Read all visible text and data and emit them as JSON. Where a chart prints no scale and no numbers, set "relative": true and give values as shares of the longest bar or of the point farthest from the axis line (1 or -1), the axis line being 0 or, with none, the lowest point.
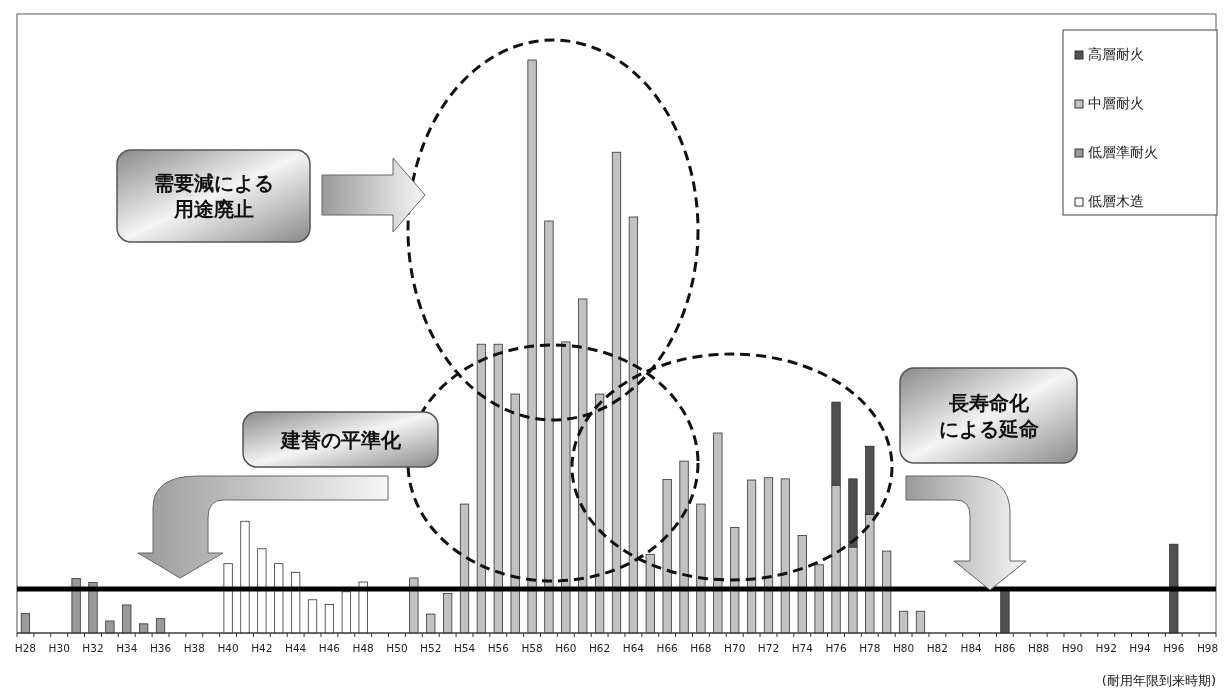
{
  "chart_data": {
    "type": "bar",
    "stacked": true,
    "relative": true,
    "legend": "top right",
    "xlabel": "(耐用年限到来時期)",
    "categories": [
      "H28",
      null,
      "H30",
      null,
      "H32",
      null,
      "H34",
      null,
      "H36",
      null,
      "H38",
      null,
      "H40",
      null,
      "H42",
      null,
      "H44",
      null,
      "H46",
      null,
      "H48",
      null,
      "H50",
      null,
      "H52",
      null,
      "H54",
      null,
      "H56",
      null,
      "H58",
      null,
      "H60",
      null,
      "H62",
      null,
      "H64",
      null,
      "H66",
      null,
      "H68",
      null,
      "H70",
      null,
      "H72",
      null,
      "H74",
      null,
      "H76",
      null,
      "H78",
      null,
      "H80",
      null,
      "H82",
      null,
      "H84",
      null,
      "H86",
      null,
      "H88",
      null,
      "H90",
      null,
      "H92",
      null,
      "H94",
      null,
      "H96",
      null,
      "H98"
    ],
    "series": [
      {
        "name": "低層木造",
        "color": "#ffffff",
        "values": [
          null,
          null,
          null,
          null,
          null,
          null,
          null,
          null,
          null,
          null,
          null,
          null,
          0.121,
          0.195,
          0.147,
          0.121,
          0.106,
          0.058,
          0.05,
          0.072,
          0.089,
          null,
          null,
          null,
          null,
          null,
          null,
          null,
          null,
          null,
          null,
          null,
          null,
          null,
          null,
          null,
          null,
          null,
          null,
          null,
          null,
          null,
          null,
          null,
          null,
          null,
          null,
          null,
          null,
          null,
          null,
          null,
          null,
          null,
          null,
          null,
          null,
          null,
          null,
          null,
          null,
          null,
          null,
          null,
          null,
          null,
          null,
          null,
          null,
          null,
          null
        ]
      },
      {
        "name": "低層準耐火",
        "color": "#9a9a9a",
        "values": [
          0.034,
          null,
          null,
          0.095,
          0.088,
          0.021,
          0.049,
          0.016,
          0.025,
          null,
          null,
          null,
          null,
          null,
          null,
          null,
          null,
          null,
          null,
          null,
          null,
          null,
          null,
          null,
          null,
          null,
          null,
          null,
          null,
          null,
          null,
          null,
          null,
          null,
          null,
          null,
          null,
          null,
          null,
          null,
          null,
          null,
          null,
          null,
          null,
          null,
          null,
          null,
          null,
          null,
          null,
          null,
          null,
          null,
          null,
          null,
          null,
          null,
          null,
          null,
          null,
          null,
          null,
          null,
          null,
          null,
          null,
          null,
          null,
          null,
          null
        ]
      },
      {
        "name": "中層耐火",
        "color": "#c2c2c2",
        "values": [
          null,
          null,
          null,
          null,
          null,
          null,
          null,
          null,
          null,
          null,
          null,
          null,
          null,
          null,
          null,
          null,
          null,
          null,
          null,
          null,
          null,
          null,
          null,
          0.096,
          0.033,
          0.069,
          0.225,
          0.504,
          0.504,
          0.417,
          1.0,
          0.719,
          0.508,
          0.583,
          0.417,
          0.839,
          0.726,
          0.137,
          0.268,
          0.3,
          0.225,
          0.349,
          0.184,
          0.267,
          0.271,
          0.269,
          0.17,
          0.119,
          0.258,
          0.15,
          0.207,
          0.143,
          0.038,
          0.038,
          null,
          null,
          null,
          null,
          null,
          null,
          null,
          null,
          null,
          null,
          null,
          null,
          null,
          null,
          null,
          null,
          null
        ]
      },
      {
        "name": "高層耐火",
        "color": "#505050",
        "values": [
          null,
          null,
          null,
          null,
          null,
          null,
          null,
          null,
          null,
          null,
          null,
          null,
          null,
          null,
          null,
          null,
          null,
          null,
          null,
          null,
          null,
          null,
          null,
          null,
          null,
          null,
          null,
          null,
          null,
          null,
          null,
          null,
          null,
          null,
          null,
          null,
          null,
          null,
          null,
          null,
          null,
          null,
          null,
          null,
          null,
          null,
          null,
          null,
          0.145,
          0.119,
          0.119,
          null,
          null,
          null,
          null,
          null,
          null,
          null,
          0.074,
          null,
          null,
          null,
          null,
          null,
          null,
          null,
          null,
          null,
          0.155,
          null,
          null
        ]
      }
    ],
    "ref_lines": [
      {
        "axis": "y",
        "value": 0.077,
        "color": "#000000"
      }
    ],
    "annotations": [
      "需要減による用途廃止",
      "建替の平準化",
      "長寿命化による延命"
    ]
  }
}
